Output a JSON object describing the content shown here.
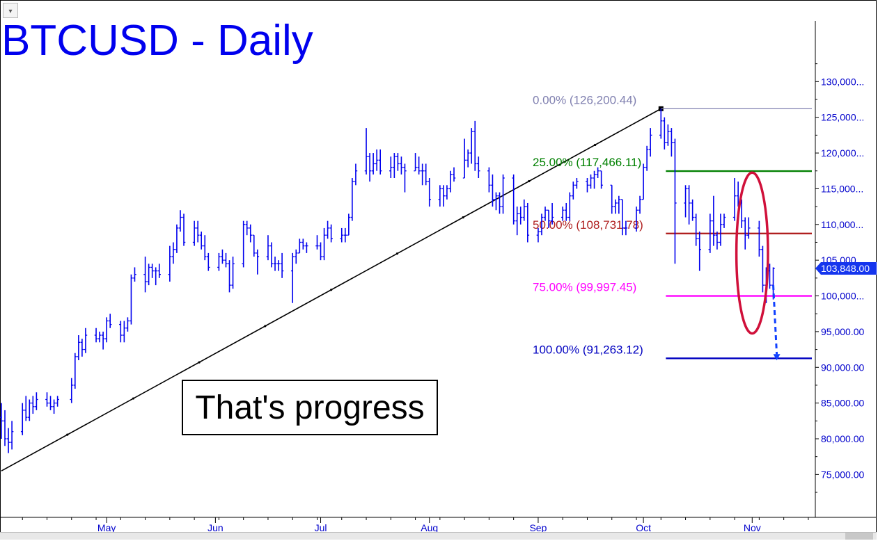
{
  "chart_data": {
    "type": "ohlc",
    "title": "BTCUSD - Daily",
    "annotation": "That's progress",
    "current_price_label": "103,848.00",
    "current_price": 103848,
    "ylim": [
      69000,
      138500
    ],
    "y_ticks": [
      {
        "value": 130000,
        "label": "130,000..."
      },
      {
        "value": 125000,
        "label": "125,000..."
      },
      {
        "value": 120000,
        "label": "120,000..."
      },
      {
        "value": 115000,
        "label": "115,000..."
      },
      {
        "value": 110000,
        "label": "110,000..."
      },
      {
        "value": 105000,
        "label": "105,000..."
      },
      {
        "value": 100000,
        "label": "100,000..."
      },
      {
        "value": 95000,
        "label": "95,000.00"
      },
      {
        "value": 90000,
        "label": "90,000.00"
      },
      {
        "value": 85000,
        "label": "85,000.00"
      },
      {
        "value": 80000,
        "label": "80,000.00"
      },
      {
        "value": 75000,
        "label": "75,000.00"
      }
    ],
    "x_range": [
      "2025-04-01",
      "2025-11-19"
    ],
    "x_ticks": [
      {
        "date": "2025-05-01",
        "label": "May"
      },
      {
        "date": "2025-06-01",
        "label": "Jun"
      },
      {
        "date": "2025-07-01",
        "label": "Jul"
      },
      {
        "date": "2025-08-01",
        "label": "Aug"
      },
      {
        "date": "2025-09-01",
        "label": "Sep"
      },
      {
        "date": "2025-10-01",
        "label": "Oct"
      },
      {
        "date": "2025-11-01",
        "label": "Nov"
      }
    ],
    "fib_levels": [
      {
        "label": "0.00% (126,200.44)",
        "value": 126200.44,
        "color": "#8080b0"
      },
      {
        "label": "25.00% (117,466.11)",
        "value": 117466.11,
        "color": "#008000"
      },
      {
        "label": "50.00% (108,731.78)",
        "value": 108731.78,
        "color": "#b02020"
      },
      {
        "label": "75.00% (99,997.45)",
        "value": 99997.45,
        "color": "#ff00ff"
      },
      {
        "label": "100.00% (91,263.12)",
        "value": 91263.12,
        "color": "#0000c0"
      }
    ],
    "trendline": {
      "start": [
        "2025-04-01",
        75500
      ],
      "end": [
        "2025-10-06",
        126200
      ]
    },
    "projection": {
      "start": [
        "2025-11-07",
        101500
      ],
      "end": [
        "2025-11-08",
        91263
      ]
    },
    "highlight_ellipse": {
      "center": [
        "2025-11-01",
        106000
      ],
      "span_days": 9,
      "span_price": 22500
    },
    "ohlc": [
      [
        "2025-04-01",
        83000,
        85000,
        80000,
        82500
      ],
      [
        "2025-04-02",
        82500,
        84000,
        79000,
        80000
      ],
      [
        "2025-04-03",
        80000,
        81500,
        78000,
        79500
      ],
      [
        "2025-04-04",
        79500,
        82500,
        78500,
        81000
      ],
      [
        "2025-04-07",
        81000,
        85000,
        80500,
        84000
      ],
      [
        "2025-04-08",
        84000,
        86000,
        82500,
        83000
      ],
      [
        "2025-04-09",
        83000,
        85500,
        82500,
        85000
      ],
      [
        "2025-04-10",
        85000,
        86000,
        83500,
        84500
      ],
      [
        "2025-04-11",
        84500,
        86500,
        84000,
        85500
      ],
      [
        "2025-04-14",
        85500,
        86500,
        84500,
        85000
      ],
      [
        "2025-04-15",
        85000,
        86000,
        84000,
        84500
      ],
      [
        "2025-04-16",
        84500,
        85500,
        83500,
        85000
      ],
      [
        "2025-04-17",
        85000,
        86000,
        84500,
        85500
      ],
      [
        "2025-04-21",
        85500,
        88500,
        85000,
        87500
      ],
      [
        "2025-04-22",
        87500,
        92000,
        87000,
        91500
      ],
      [
        "2025-04-23",
        91500,
        94500,
        91000,
        93500
      ],
      [
        "2025-04-24",
        93500,
        94000,
        91500,
        92500
      ],
      [
        "2025-04-25",
        92500,
        95500,
        92000,
        94500
      ],
      [
        "2025-04-28",
        94500,
        95500,
        93500,
        94000
      ],
      [
        "2025-04-29",
        94000,
        95000,
        93500,
        94500
      ],
      [
        "2025-04-30",
        94500,
        95000,
        92500,
        94000
      ],
      [
        "2025-05-01",
        94000,
        97000,
        93500,
        96500
      ],
      [
        "2025-05-02",
        96500,
        97500,
        95500,
        96000
      ],
      [
        "2025-05-05",
        96000,
        96500,
        93500,
        94500
      ],
      [
        "2025-05-06",
        94500,
        96500,
        93500,
        95500
      ],
      [
        "2025-05-07",
        95500,
        97000,
        95000,
        96500
      ],
      [
        "2025-05-08",
        96500,
        103000,
        96000,
        102500
      ],
      [
        "2025-05-09",
        102500,
        104000,
        102000,
        103000
      ],
      [
        "2025-05-12",
        103000,
        105500,
        100500,
        102000
      ],
      [
        "2025-05-13",
        102000,
        104500,
        101500,
        104000
      ],
      [
        "2025-05-14",
        104000,
        104500,
        102500,
        103500
      ],
      [
        "2025-05-15",
        103500,
        104000,
        101500,
        103500
      ],
      [
        "2025-05-16",
        103500,
        104500,
        102500,
        103000
      ],
      [
        "2025-05-19",
        103000,
        107000,
        102000,
        105500
      ],
      [
        "2025-05-20",
        105500,
        107500,
        104500,
        106500
      ],
      [
        "2025-05-21",
        106500,
        110000,
        106000,
        109500
      ],
      [
        "2025-05-22",
        109500,
        112000,
        109000,
        111000
      ],
      [
        "2025-05-23",
        111000,
        111500,
        107000,
        107500
      ],
      [
        "2025-05-26",
        107500,
        110500,
        107000,
        109500
      ],
      [
        "2025-05-27",
        109500,
        110500,
        107500,
        108500
      ],
      [
        "2025-05-28",
        108500,
        109000,
        106500,
        107000
      ],
      [
        "2025-05-29",
        107000,
        108500,
        105000,
        105500
      ],
      [
        "2025-05-30",
        105500,
        106000,
        103500,
        104000
      ],
      [
        "2025-06-02",
        104000,
        106000,
        103500,
        105500
      ],
      [
        "2025-06-03",
        105500,
        106500,
        104500,
        105000
      ],
      [
        "2025-06-04",
        105000,
        106000,
        104000,
        104500
      ],
      [
        "2025-06-05",
        104500,
        105000,
        100500,
        101500
      ],
      [
        "2025-06-06",
        101500,
        105500,
        101000,
        104500
      ],
      [
        "2025-06-09",
        104500,
        110500,
        104000,
        110000
      ],
      [
        "2025-06-10",
        110000,
        110500,
        108500,
        109500
      ],
      [
        "2025-06-11",
        109500,
        110000,
        107500,
        108500
      ],
      [
        "2025-06-12",
        108500,
        108500,
        105500,
        106000
      ],
      [
        "2025-06-13",
        106000,
        106500,
        103000,
        105500
      ],
      [
        "2025-06-16",
        105500,
        108500,
        105000,
        107000
      ],
      [
        "2025-06-17",
        107000,
        107500,
        104000,
        104500
      ],
      [
        "2025-06-18",
        104500,
        105500,
        103500,
        104500
      ],
      [
        "2025-06-19",
        104500,
        105000,
        103500,
        104500
      ],
      [
        "2025-06-20",
        104500,
        106000,
        102500,
        103500
      ],
      [
        "2025-06-23",
        103500,
        106000,
        99000,
        105500
      ],
      [
        "2025-06-24",
        105500,
        106500,
        104500,
        106000
      ],
      [
        "2025-06-25",
        106000,
        108000,
        106000,
        107500
      ],
      [
        "2025-06-26",
        107500,
        108000,
        106500,
        107000
      ],
      [
        "2025-06-27",
        107000,
        107500,
        106000,
        107000
      ],
      [
        "2025-06-30",
        107000,
        108500,
        106500,
        107000
      ],
      [
        "2025-07-01",
        107000,
        107500,
        105000,
        105500
      ],
      [
        "2025-07-02",
        105500,
        109500,
        105000,
        108500
      ],
      [
        "2025-07-03",
        108500,
        110500,
        108000,
        109500
      ],
      [
        "2025-07-04",
        109500,
        110000,
        107500,
        108000
      ],
      [
        "2025-07-07",
        108000,
        109500,
        107500,
        108500
      ],
      [
        "2025-07-08",
        108500,
        109500,
        107500,
        108500
      ],
      [
        "2025-07-09",
        108500,
        111500,
        108500,
        111000
      ],
      [
        "2025-07-10",
        111000,
        116500,
        110500,
        116000
      ],
      [
        "2025-07-11",
        116000,
        118500,
        115500,
        117500
      ],
      [
        "2025-07-14",
        117500,
        123500,
        117000,
        119500
      ],
      [
        "2025-07-15",
        119500,
        120000,
        116000,
        117500
      ],
      [
        "2025-07-16",
        117500,
        120000,
        117000,
        118500
      ],
      [
        "2025-07-17",
        118500,
        120500,
        117500,
        119000
      ],
      [
        "2025-07-18",
        119000,
        120500,
        117000,
        117500
      ],
      [
        "2025-07-21",
        117500,
        119500,
        116500,
        118000
      ],
      [
        "2025-07-22",
        118000,
        120000,
        116500,
        119500
      ],
      [
        "2025-07-23",
        119500,
        120000,
        117500,
        118500
      ],
      [
        "2025-07-24",
        118500,
        119500,
        117000,
        118000
      ],
      [
        "2025-07-25",
        118000,
        118500,
        114500,
        117500
      ],
      [
        "2025-07-28",
        117500,
        120000,
        117500,
        118000
      ],
      [
        "2025-07-29",
        118000,
        119500,
        117000,
        117500
      ],
      [
        "2025-07-30",
        117500,
        118500,
        115500,
        117500
      ],
      [
        "2025-07-31",
        117500,
        118500,
        115500,
        116000
      ],
      [
        "2025-08-01",
        116000,
        116500,
        112500,
        113500
      ],
      [
        "2025-08-04",
        113500,
        115500,
        112500,
        115000
      ],
      [
        "2025-08-05",
        115000,
        115500,
        112500,
        114000
      ],
      [
        "2025-08-06",
        114000,
        115500,
        113500,
        115000
      ],
      [
        "2025-08-07",
        115000,
        117500,
        114500,
        117000
      ],
      [
        "2025-08-08",
        117000,
        118000,
        116000,
        116500
      ],
      [
        "2025-08-11",
        116500,
        122000,
        116500,
        119000
      ],
      [
        "2025-08-12",
        119000,
        120500,
        118000,
        120000
      ],
      [
        "2025-08-13",
        120000,
        123500,
        118500,
        123000
      ],
      [
        "2025-08-14",
        123000,
        124500,
        117500,
        118500
      ],
      [
        "2025-08-15",
        118500,
        119500,
        116500,
        117500
      ],
      [
        "2025-08-18",
        117500,
        118000,
        114500,
        115500
      ],
      [
        "2025-08-19",
        115500,
        117000,
        112500,
        113500
      ],
      [
        "2025-08-20",
        113500,
        114500,
        112000,
        114000
      ],
      [
        "2025-08-21",
        114000,
        114500,
        111500,
        112500
      ],
      [
        "2025-08-22",
        112500,
        117000,
        111500,
        116500
      ],
      [
        "2025-08-25",
        116500,
        117000,
        110000,
        110500
      ],
      [
        "2025-08-26",
        110500,
        112500,
        108500,
        111500
      ],
      [
        "2025-08-27",
        111500,
        112500,
        110000,
        111000
      ],
      [
        "2025-08-28",
        111000,
        113500,
        110500,
        112500
      ],
      [
        "2025-08-29",
        112500,
        113000,
        107500,
        108500
      ],
      [
        "2025-09-01",
        108500,
        109500,
        107500,
        109000
      ],
      [
        "2025-09-02",
        109000,
        111500,
        108500,
        111000
      ],
      [
        "2025-09-03",
        111000,
        112500,
        110500,
        112000
      ],
      [
        "2025-09-04",
        112000,
        112000,
        109500,
        110500
      ],
      [
        "2025-09-05",
        110500,
        113000,
        110000,
        111000
      ],
      [
        "2025-09-08",
        111000,
        112500,
        110500,
        112000
      ],
      [
        "2025-09-09",
        112000,
        113000,
        110500,
        111000
      ],
      [
        "2025-09-10",
        111000,
        114500,
        110500,
        114000
      ],
      [
        "2025-09-11",
        114000,
        116000,
        113500,
        115500
      ],
      [
        "2025-09-12",
        115500,
        116500,
        115000,
        116000
      ],
      [
        "2025-09-15",
        116000,
        116500,
        114500,
        115500
      ],
      [
        "2025-09-16",
        115500,
        117000,
        115000,
        116500
      ],
      [
        "2025-09-17",
        116500,
        117500,
        115000,
        117000
      ],
      [
        "2025-09-18",
        117000,
        118000,
        116500,
        117500
      ],
      [
        "2025-09-19",
        117500,
        117500,
        115000,
        115500
      ],
      [
        "2025-09-22",
        115500,
        115500,
        111500,
        112500
      ],
      [
        "2025-09-23",
        112500,
        113500,
        111500,
        113000
      ],
      [
        "2025-09-24",
        113000,
        114000,
        111500,
        113500
      ],
      [
        "2025-09-25",
        113500,
        113500,
        108500,
        109500
      ],
      [
        "2025-09-26",
        109500,
        110500,
        108500,
        109500
      ],
      [
        "2025-09-29",
        109500,
        112500,
        109000,
        112000
      ],
      [
        "2025-09-30",
        112000,
        114000,
        111500,
        113500
      ],
      [
        "2025-10-01",
        113500,
        118500,
        113500,
        118000
      ],
      [
        "2025-10-02",
        118000,
        121000,
        117500,
        120500
      ],
      [
        "2025-10-03",
        120500,
        123500,
        119500,
        122500
      ],
      [
        "2025-10-06",
        122500,
        126200,
        122000,
        124500
      ],
      [
        "2025-10-07",
        124500,
        125000,
        120500,
        121500
      ],
      [
        "2025-10-08",
        121500,
        124000,
        121000,
        123000
      ],
      [
        "2025-10-09",
        123000,
        123500,
        119500,
        121500
      ],
      [
        "2025-10-10",
        121500,
        122000,
        104500,
        113000
      ],
      [
        "2025-10-13",
        113000,
        115500,
        111000,
        115000
      ],
      [
        "2025-10-14",
        115000,
        115500,
        110000,
        113000
      ],
      [
        "2025-10-15",
        113000,
        113500,
        110500,
        111000
      ],
      [
        "2025-10-16",
        111000,
        111500,
        107000,
        108000
      ],
      [
        "2025-10-17",
        108000,
        109000,
        103500,
        106500
      ],
      [
        "2025-10-20",
        106500,
        111500,
        106000,
        110500
      ],
      [
        "2025-10-21",
        110500,
        114000,
        107000,
        108500
      ],
      [
        "2025-10-22",
        108500,
        109000,
        106500,
        107500
      ],
      [
        "2025-10-23",
        107500,
        111500,
        107000,
        110000
      ],
      [
        "2025-10-24",
        110000,
        111500,
        109500,
        111000
      ],
      [
        "2025-10-27",
        111000,
        116500,
        110500,
        114000
      ],
      [
        "2025-10-28",
        114000,
        116000,
        112500,
        113000
      ],
      [
        "2025-10-29",
        113000,
        113500,
        109500,
        110500
      ],
      [
        "2025-10-30",
        110500,
        111000,
        106500,
        108500
      ],
      [
        "2025-10-31",
        108500,
        111000,
        108000,
        109500
      ],
      [
        "2025-11-03",
        109500,
        110500,
        105500,
        106500
      ],
      [
        "2025-11-04",
        106500,
        107000,
        100500,
        101500
      ],
      [
        "2025-11-05",
        101500,
        104000,
        99000,
        103500
      ],
      [
        "2025-11-06",
        103500,
        104500,
        101000,
        101500
      ],
      [
        "2025-11-07",
        101500,
        104000,
        99500,
        103848
      ]
    ]
  }
}
